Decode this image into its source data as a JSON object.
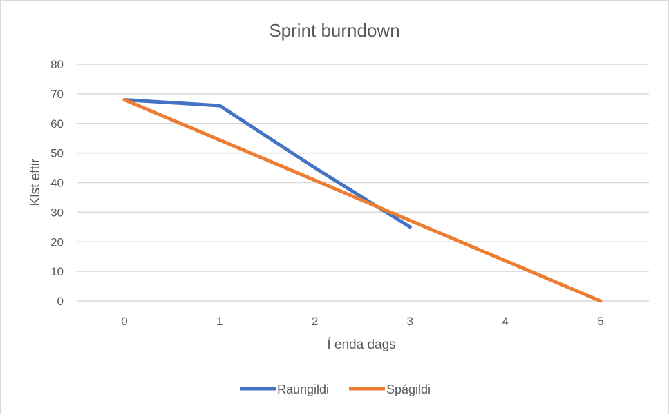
{
  "chart_data": {
    "type": "line",
    "title": "Sprint burndown",
    "xlabel": "Í enda dags",
    "ylabel": "Klst eftir",
    "x": [
      0,
      1,
      2,
      3,
      4,
      5
    ],
    "xlim": [
      0,
      5
    ],
    "ylim": [
      0,
      80
    ],
    "yticks": [
      0,
      10,
      20,
      30,
      40,
      50,
      60,
      70,
      80
    ],
    "grid": true,
    "legend_position": "bottom",
    "series": [
      {
        "name": "Raungildi",
        "color": "#4472c4",
        "points": [
          [
            0,
            68
          ],
          [
            1,
            66
          ],
          [
            2,
            45
          ],
          [
            3,
            25
          ]
        ]
      },
      {
        "name": "Spágildi",
        "color": "#ed7d31",
        "points": [
          [
            0,
            68
          ],
          [
            5,
            0
          ]
        ]
      }
    ]
  }
}
